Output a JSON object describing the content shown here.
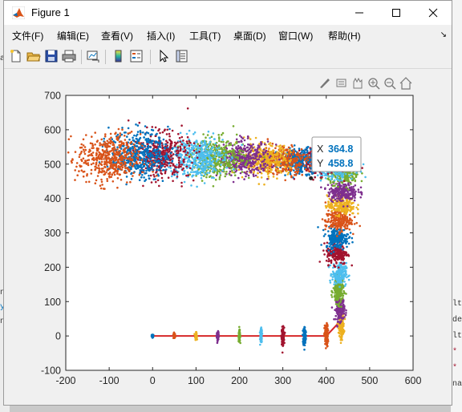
{
  "window": {
    "title": "Figure 1",
    "controls": [
      "minimize",
      "maximize",
      "close"
    ]
  },
  "menu": [
    {
      "label": "文件(F)"
    },
    {
      "label": "编辑(E)"
    },
    {
      "label": "查看(V)"
    },
    {
      "label": "插入(I)"
    },
    {
      "label": "工具(T)"
    },
    {
      "label": "桌面(D)"
    },
    {
      "label": "窗口(W)"
    },
    {
      "label": "帮助(H)"
    }
  ],
  "toolbar": [
    "new-figure-icon",
    "open-file-icon",
    "save-icon",
    "print-icon",
    "link-plot-icon",
    "colorbar-icon",
    "legend-icon",
    "edit-plot-icon",
    "property-inspector-icon"
  ],
  "axes_toolbar": [
    "brush-icon",
    "data-tips-icon",
    "pan-icon",
    "zoom-in-icon",
    "zoom-out-icon",
    "home-icon"
  ],
  "datatip": {
    "x_label": "X",
    "x_value": "364.8",
    "y_label": "Y",
    "y_value": "458.8",
    "color": "#0072bd"
  },
  "chart_data": {
    "type": "scatter",
    "xlim": [
      -200,
      600
    ],
    "ylim": [
      -100,
      700
    ],
    "xticks": [
      -200,
      -100,
      0,
      100,
      200,
      300,
      400,
      500,
      600
    ],
    "yticks": [
      -100,
      0,
      100,
      200,
      300,
      400,
      500,
      600,
      700
    ],
    "grid": false,
    "colors": [
      "#0072bd",
      "#d95319",
      "#edb120",
      "#7e2f8e",
      "#77ac30",
      "#4dbeee",
      "#a2142f"
    ],
    "trajectory": {
      "color": "#d62728",
      "x": [
        0,
        50,
        100,
        150,
        200,
        250,
        300,
        350,
        400,
        430
      ],
      "y": [
        0,
        0,
        0,
        0,
        0,
        0,
        0,
        0,
        0,
        40
      ]
    },
    "clusters": [
      {
        "x": 0,
        "y": 0,
        "sx": 1,
        "sy": 2,
        "color": "#0072bd"
      },
      {
        "x": 50,
        "y": 0,
        "sx": 1,
        "sy": 4,
        "color": "#d95319"
      },
      {
        "x": 100,
        "y": 0,
        "sx": 1,
        "sy": 5,
        "color": "#edb120"
      },
      {
        "x": 150,
        "y": 0,
        "sx": 1,
        "sy": 6,
        "color": "#7e2f8e"
      },
      {
        "x": 200,
        "y": 0,
        "sx": 1,
        "sy": 8,
        "color": "#77ac30"
      },
      {
        "x": 250,
        "y": 0,
        "sx": 1,
        "sy": 10,
        "color": "#4dbeee"
      },
      {
        "x": 300,
        "y": 0,
        "sx": 1.5,
        "sy": 12,
        "color": "#a2142f"
      },
      {
        "x": 350,
        "y": 0,
        "sx": 1.5,
        "sy": 14,
        "color": "#0072bd"
      },
      {
        "x": 400,
        "y": 0,
        "sx": 2,
        "sy": 16,
        "color": "#d95319"
      },
      {
        "x": 435,
        "y": 30,
        "sx": 3,
        "sy": 16,
        "color": "#edb120"
      },
      {
        "x": 432,
        "y": 80,
        "sx": 5,
        "sy": 18,
        "color": "#7e2f8e"
      },
      {
        "x": 428,
        "y": 130,
        "sx": 6,
        "sy": 18,
        "color": "#77ac30"
      },
      {
        "x": 430,
        "y": 180,
        "sx": 8,
        "sy": 16,
        "color": "#4dbeee"
      },
      {
        "x": 425,
        "y": 240,
        "sx": 12,
        "sy": 16,
        "color": "#a2142f"
      },
      {
        "x": 425,
        "y": 285,
        "sx": 13,
        "sy": 15,
        "color": "#0072bd"
      },
      {
        "x": 428,
        "y": 335,
        "sx": 15,
        "sy": 15,
        "color": "#d95319"
      },
      {
        "x": 435,
        "y": 380,
        "sx": 16,
        "sy": 14,
        "color": "#edb120"
      },
      {
        "x": 438,
        "y": 420,
        "sx": 17,
        "sy": 14,
        "color": "#7e2f8e"
      },
      {
        "x": 440,
        "y": 470,
        "sx": 18,
        "sy": 14,
        "color": "#77ac30"
      },
      {
        "x": 420,
        "y": 490,
        "sx": 22,
        "sy": 16,
        "color": "#4dbeee"
      },
      {
        "x": 380,
        "y": 505,
        "sx": 24,
        "sy": 18,
        "color": "#a2142f"
      },
      {
        "x": 340,
        "y": 510,
        "sx": 26,
        "sy": 18,
        "color": "#0072bd"
      },
      {
        "x": 300,
        "y": 512,
        "sx": 28,
        "sy": 20,
        "color": "#d95319"
      },
      {
        "x": 255,
        "y": 515,
        "sx": 30,
        "sy": 22,
        "color": "#edb120"
      },
      {
        "x": 210,
        "y": 515,
        "sx": 30,
        "sy": 24,
        "color": "#7e2f8e"
      },
      {
        "x": 150,
        "y": 518,
        "sx": 30,
        "sy": 28,
        "color": "#77ac30"
      },
      {
        "x": 100,
        "y": 520,
        "sx": 32,
        "sy": 30,
        "color": "#4dbeee"
      },
      {
        "x": 20,
        "y": 525,
        "sx": 32,
        "sy": 32,
        "color": "#a2142f"
      },
      {
        "x": -30,
        "y": 528,
        "sx": 34,
        "sy": 34,
        "color": "#0072bd"
      },
      {
        "x": -100,
        "y": 515,
        "sx": 36,
        "sy": 36,
        "color": "#d95319"
      }
    ],
    "datatip_point": {
      "x": 364.8,
      "y": 458.8
    }
  }
}
